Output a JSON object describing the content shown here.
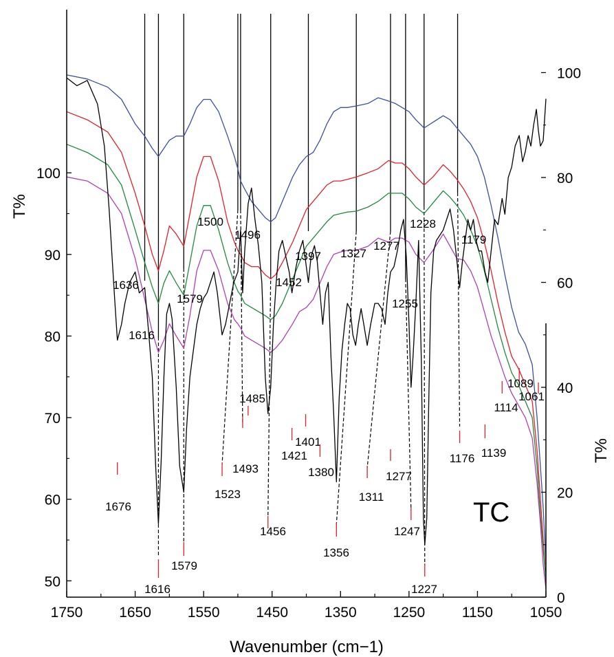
{
  "chart_data": {
    "type": "line",
    "xlabel": "Wavenumber (cm−1)",
    "ylabel_left": "T%",
    "ylabel_right": "T%",
    "x_range": [
      1750,
      1050
    ],
    "x_ticks": [
      1750,
      1650,
      1550,
      1450,
      1350,
      1250,
      1150,
      1050
    ],
    "left_axis": {
      "ticks": [
        100,
        90,
        80,
        70,
        60,
        50
      ],
      "range": [
        48,
        120
      ]
    },
    "right_axis": {
      "ticks": [
        100,
        80,
        60,
        40,
        20,
        0
      ],
      "range": [
        0,
        112
      ]
    },
    "series_colors": [
      "#3b4fa0",
      "#e0202a",
      "#1f8a3c",
      "#b040b0",
      "#000000"
    ],
    "series": [
      {
        "axis": "left",
        "color": "#3b4fa0",
        "x": [
          1750,
          1720,
          1690,
          1670,
          1650,
          1636,
          1625,
          1616,
          1608,
          1600,
          1590,
          1579,
          1570,
          1560,
          1550,
          1540,
          1528,
          1515,
          1505,
          1500,
          1496,
          1490,
          1480,
          1470,
          1460,
          1452,
          1445,
          1435,
          1420,
          1410,
          1400,
          1390,
          1380,
          1370,
          1360,
          1350,
          1340,
          1327,
          1310,
          1295,
          1280,
          1270,
          1260,
          1250,
          1240,
          1228,
          1215,
          1200,
          1190,
          1180,
          1170,
          1160,
          1150,
          1140,
          1130,
          1120,
          1110,
          1100,
          1090,
          1080,
          1070,
          1063,
          1058,
          1054,
          1050
        ],
        "y": [
          112,
          111.5,
          110.5,
          109,
          106,
          104.5,
          103,
          102,
          103,
          104,
          104.5,
          104.5,
          106,
          108,
          109,
          109,
          107.5,
          104.5,
          102,
          100.5,
          99,
          98,
          96.5,
          95.5,
          94.5,
          94,
          94.5,
          96.5,
          99.5,
          101,
          102,
          102.5,
          104,
          106,
          107.5,
          108,
          108,
          108.2,
          108.5,
          109.2,
          108.8,
          108.5,
          108,
          107.5,
          106.5,
          105.5,
          106.2,
          107,
          106.5,
          105.5,
          104.5,
          103.5,
          102,
          99.5,
          96,
          92,
          87.5,
          83.5,
          80.5,
          79,
          76.5,
          70,
          64,
          59,
          52
        ]
      },
      {
        "axis": "left",
        "color": "#e0202a",
        "x": [
          1750,
          1720,
          1690,
          1670,
          1650,
          1636,
          1625,
          1616,
          1608,
          1600,
          1590,
          1579,
          1570,
          1560,
          1550,
          1540,
          1528,
          1515,
          1505,
          1500,
          1496,
          1490,
          1480,
          1470,
          1460,
          1452,
          1445,
          1435,
          1420,
          1410,
          1400,
          1390,
          1380,
          1370,
          1360,
          1350,
          1340,
          1327,
          1310,
          1295,
          1280,
          1270,
          1260,
          1250,
          1240,
          1228,
          1215,
          1200,
          1190,
          1180,
          1170,
          1160,
          1150,
          1140,
          1130,
          1120,
          1110,
          1100,
          1090,
          1080,
          1070,
          1063,
          1058,
          1054,
          1050
        ],
        "y": [
          107.5,
          106.5,
          105,
          102.5,
          97.5,
          93.5,
          90,
          88,
          90.5,
          93.5,
          92.5,
          91,
          95,
          99.5,
          102,
          102,
          99,
          94,
          91.5,
          90.5,
          90,
          89,
          88.5,
          88.5,
          87.5,
          87,
          87.5,
          89,
          91.5,
          93.5,
          95.5,
          96.5,
          97.5,
          98.5,
          99,
          99,
          99.2,
          99.5,
          100,
          100.5,
          101.5,
          101.2,
          101.2,
          100.5,
          99.5,
          98.5,
          99.5,
          101,
          100.2,
          99.2,
          98,
          96.5,
          94.5,
          91.5,
          88,
          84,
          80.5,
          77.5,
          76,
          74,
          72,
          66,
          60,
          55,
          50
        ]
      },
      {
        "axis": "left",
        "color": "#1f8a3c",
        "x": [
          1750,
          1720,
          1690,
          1670,
          1650,
          1636,
          1625,
          1616,
          1608,
          1600,
          1590,
          1579,
          1570,
          1560,
          1550,
          1540,
          1528,
          1515,
          1505,
          1500,
          1496,
          1490,
          1480,
          1470,
          1460,
          1452,
          1445,
          1435,
          1420,
          1410,
          1400,
          1390,
          1380,
          1370,
          1360,
          1350,
          1340,
          1327,
          1310,
          1295,
          1280,
          1270,
          1260,
          1250,
          1240,
          1228,
          1215,
          1200,
          1190,
          1180,
          1170,
          1160,
          1150,
          1140,
          1130,
          1120,
          1110,
          1100,
          1090,
          1080,
          1070,
          1063,
          1058,
          1054,
          1050
        ],
        "y": [
          103.5,
          102.5,
          101,
          98.5,
          93,
          89,
          86,
          84,
          86.5,
          88,
          86.5,
          85,
          89,
          93.5,
          96,
          96,
          93,
          89,
          86.5,
          85.5,
          85,
          84,
          83.5,
          83,
          82.5,
          82,
          82.5,
          84,
          87,
          89,
          91,
          92,
          93,
          94,
          94.8,
          95,
          95.2,
          95.3,
          95.8,
          96.5,
          97.5,
          97.5,
          97.5,
          96.8,
          95.8,
          95,
          96.3,
          97.8,
          97,
          96,
          94.8,
          93,
          91,
          88,
          84.5,
          81,
          78,
          75.5,
          74,
          72,
          70,
          64,
          58,
          54,
          50
        ]
      },
      {
        "axis": "left",
        "color": "#b040b0",
        "x": [
          1750,
          1720,
          1690,
          1670,
          1650,
          1636,
          1625,
          1616,
          1608,
          1600,
          1590,
          1579,
          1570,
          1560,
          1550,
          1540,
          1528,
          1515,
          1505,
          1500,
          1496,
          1490,
          1480,
          1470,
          1460,
          1452,
          1445,
          1435,
          1420,
          1410,
          1400,
          1390,
          1380,
          1370,
          1360,
          1350,
          1340,
          1327,
          1310,
          1295,
          1280,
          1270,
          1260,
          1250,
          1240,
          1228,
          1215,
          1200,
          1190,
          1180,
          1170,
          1160,
          1150,
          1140,
          1130,
          1120,
          1110,
          1100,
          1090,
          1080,
          1070,
          1063,
          1058,
          1054,
          1050
        ],
        "y": [
          99.5,
          99,
          97.5,
          95,
          89.5,
          84.5,
          80.5,
          78,
          79.5,
          81.5,
          80,
          78.5,
          82.5,
          88,
          90.5,
          90.5,
          88,
          84,
          82,
          81.5,
          81,
          80,
          79.5,
          79,
          78.5,
          78,
          78.5,
          79.5,
          81.5,
          83,
          83.5,
          84.5,
          86.5,
          88.5,
          90,
          90.3,
          90.5,
          90.5,
          91,
          92,
          91.5,
          92,
          92,
          91.5,
          90,
          89,
          90.5,
          92.5,
          91,
          89.5,
          89.3,
          88,
          86,
          83,
          80,
          77.5,
          75,
          73,
          71.5,
          70,
          67.5,
          62,
          57,
          52,
          49
        ]
      },
      {
        "axis": "right",
        "color": "#000000",
        "x": [
          1750,
          1735,
          1720,
          1705,
          1695,
          1688,
          1680,
          1676,
          1670,
          1665,
          1658,
          1650,
          1644,
          1636,
          1630,
          1625,
          1620,
          1616,
          1612,
          1608,
          1604,
          1600,
          1596,
          1590,
          1585,
          1579,
          1575,
          1570,
          1565,
          1560,
          1555,
          1550,
          1545,
          1540,
          1535,
          1530,
          1523,
          1518,
          1512,
          1506,
          1500,
          1496,
          1493,
          1490,
          1485,
          1480,
          1475,
          1470,
          1465,
          1460,
          1456,
          1452,
          1448,
          1444,
          1440,
          1435,
          1430,
          1425,
          1421,
          1415,
          1410,
          1405,
          1401,
          1397,
          1393,
          1388,
          1384,
          1380,
          1376,
          1372,
          1368,
          1364,
          1360,
          1356,
          1352,
          1348,
          1344,
          1340,
          1336,
          1332,
          1328,
          1324,
          1320,
          1316,
          1311,
          1306,
          1300,
          1295,
          1290,
          1285,
          1281,
          1277,
          1272,
          1267,
          1262,
          1258,
          1254,
          1250,
          1247,
          1244,
          1240,
          1236,
          1232,
          1229,
          1227,
          1224,
          1221,
          1218,
          1214,
          1210,
          1205,
          1200,
          1195,
          1190,
          1185,
          1180,
          1176,
          1172,
          1168,
          1164,
          1160,
          1156,
          1152,
          1148,
          1144,
          1139,
          1135,
          1130,
          1125,
          1120,
          1114,
          1110,
          1105,
          1100,
          1095,
          1089,
          1084,
          1080,
          1076,
          1072,
          1068,
          1064,
          1061,
          1058,
          1054,
          1050
        ],
        "y": [
          99,
          97.5,
          98.5,
          94,
          86,
          74,
          57,
          49,
          52,
          56,
          60,
          62,
          58,
          59,
          50,
          42,
          25,
          14,
          26,
          42,
          54,
          56,
          53,
          40,
          25,
          20,
          32,
          42,
          47,
          52,
          55,
          57,
          58,
          60,
          62,
          58,
          50,
          52,
          56,
          60,
          62,
          70,
          58,
          66,
          75,
          78,
          72,
          67,
          60,
          42,
          35,
          40,
          52,
          60,
          66,
          68,
          65,
          62,
          58,
          63,
          66,
          68,
          64,
          60,
          65,
          67,
          64,
          58,
          52,
          58,
          60,
          46,
          35,
          22,
          38,
          47,
          52,
          56,
          55,
          50,
          48,
          52,
          55,
          52,
          48,
          52,
          56,
          56,
          55,
          52,
          58,
          62,
          63,
          66,
          70,
          72,
          65,
          52,
          40,
          46,
          56,
          68,
          45,
          15,
          10,
          15,
          38,
          58,
          66,
          68,
          69,
          70,
          72,
          74,
          70,
          64,
          59,
          64,
          68,
          72,
          70,
          72,
          68,
          66,
          66,
          62,
          60,
          66,
          72,
          71,
          76,
          73,
          80,
          82,
          86,
          88,
          83,
          85,
          88,
          86,
          90,
          93,
          89,
          86,
          87,
          95
        ]
      }
    ],
    "guide_lines": [
      1636,
      1616,
      1579,
      1500,
      1496,
      1452,
      1397,
      1327,
      1277,
      1255,
      1228,
      1179
    ],
    "dashed_links": [
      {
        "top": 1616,
        "bottom": 1616
      },
      {
        "top": 1579,
        "bottom": 1579
      },
      {
        "top": 1500,
        "bottom": 1523
      },
      {
        "top": 1496,
        "bottom": 1493
      },
      {
        "top": 1452,
        "bottom": 1456
      },
      {
        "top": 1327,
        "bottom": 1356
      },
      {
        "top": 1277,
        "bottom": 1311
      },
      {
        "top": 1255,
        "bottom": 1247
      },
      {
        "top": 1228,
        "bottom": 1227
      },
      {
        "top": 1179,
        "bottom": 1176
      }
    ],
    "top_labels": [
      "1636",
      "1616",
      "1579",
      "1500",
      "1496",
      "1452",
      "1397",
      "1327",
      "1277",
      "1255",
      "1228",
      "1179"
    ],
    "bottom_peaks": [
      {
        "x": 1676,
        "label": "1676"
      },
      {
        "x": 1616,
        "label": "1616"
      },
      {
        "x": 1579,
        "label": "1579"
      },
      {
        "x": 1523,
        "label": "1523"
      },
      {
        "x": 1493,
        "label": "1493"
      },
      {
        "x": 1485,
        "label": "1485"
      },
      {
        "x": 1456,
        "label": "1456"
      },
      {
        "x": 1421,
        "label": "1421"
      },
      {
        "x": 1401,
        "label": "1401"
      },
      {
        "x": 1380,
        "label": "1380"
      },
      {
        "x": 1356,
        "label": "1356"
      },
      {
        "x": 1311,
        "label": "1311"
      },
      {
        "x": 1277,
        "label": "1277"
      },
      {
        "x": 1247,
        "label": "1247"
      },
      {
        "x": 1227,
        "label": "1227"
      },
      {
        "x": 1176,
        "label": "1176"
      },
      {
        "x": 1139,
        "label": "1139"
      },
      {
        "x": 1114,
        "label": "1114"
      },
      {
        "x": 1089,
        "label": "1089"
      },
      {
        "x": 1061,
        "label": "1061"
      }
    ],
    "annotation": "TC"
  }
}
